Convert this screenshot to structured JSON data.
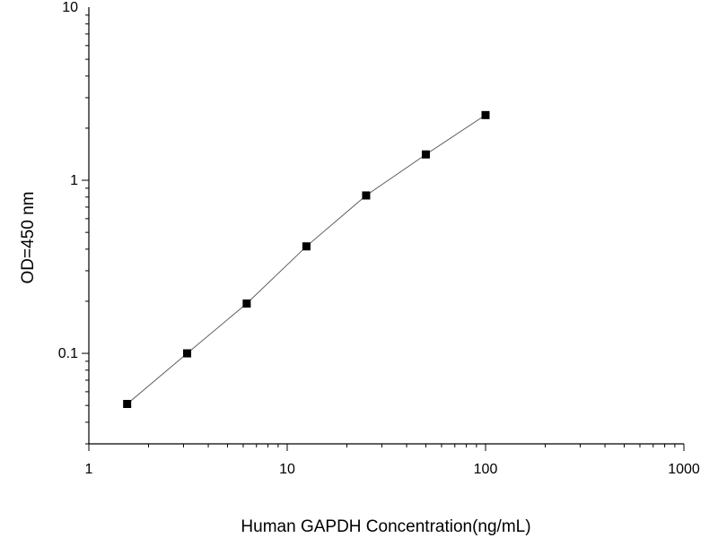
{
  "chart_data": {
    "type": "scatter",
    "xlabel": "Human GAPDH Concentration(ng/mL)",
    "ylabel": "OD=450 nm",
    "x_scale": "log",
    "y_scale": "log",
    "xlim": [
      1,
      1000
    ],
    "ylim": [
      0.03,
      10
    ],
    "x_ticks": [
      {
        "value": 1,
        "label": "1"
      },
      {
        "value": 10,
        "label": "10"
      },
      {
        "value": 100,
        "label": "100"
      },
      {
        "value": 1000,
        "label": "1000"
      }
    ],
    "y_ticks": [
      {
        "value": 0.1,
        "label": "0.1"
      },
      {
        "value": 1,
        "label": "1"
      },
      {
        "value": 10,
        "label": "10"
      }
    ],
    "grid": false,
    "legend": "none",
    "connect_points": true,
    "marker": "square",
    "color": "#000000",
    "series": [
      {
        "x": [
          1.56,
          3.13,
          6.25,
          12.5,
          25,
          50,
          100
        ],
        "y": [
          0.051,
          0.1,
          0.194,
          0.415,
          0.817,
          1.41,
          2.38
        ]
      }
    ]
  }
}
